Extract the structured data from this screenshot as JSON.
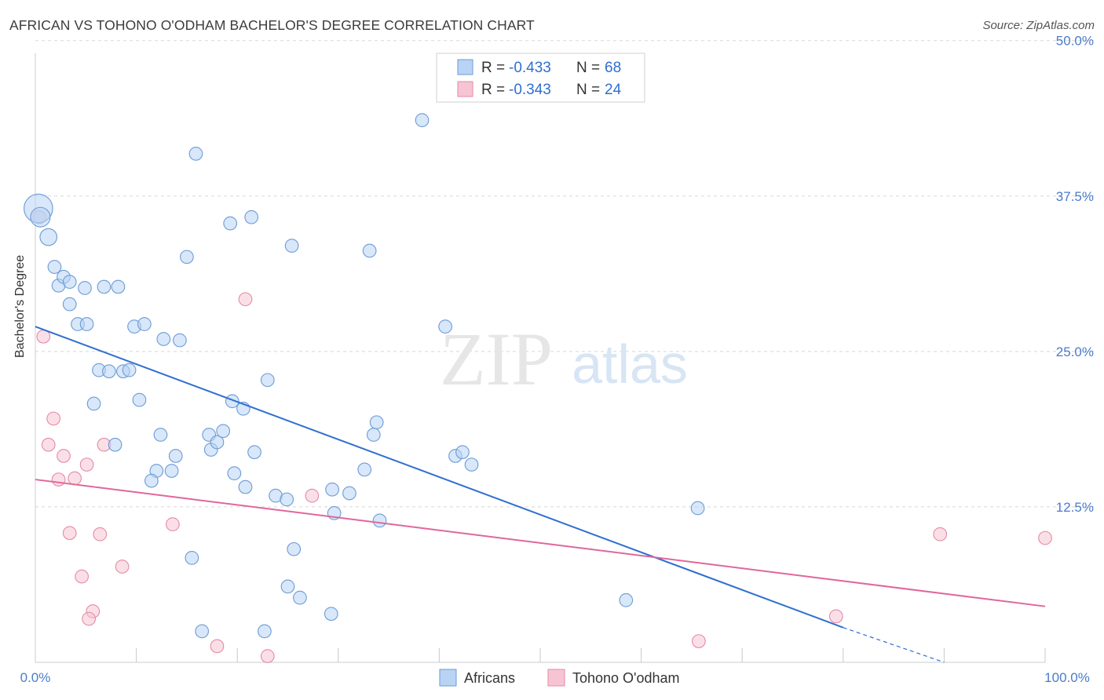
{
  "header": {
    "title": "AFRICAN VS TOHONO O'ODHAM BACHELOR'S DEGREE CORRELATION CHART",
    "source": "Source: ZipAtlas.com"
  },
  "watermark": {
    "zip": "ZIP",
    "atlas": "atlas"
  },
  "colors": {
    "africans_fill": "#b8d3f4",
    "africans_stroke": "#6b9bd6",
    "africans_line": "#2f6fd0",
    "tohono_fill": "#f7c4d3",
    "tohono_stroke": "#e48aa7",
    "tohono_line": "#e0679a",
    "axis_label": "#4a7cc9",
    "grid": "#d8d8d8"
  },
  "legend": {
    "rows": [
      {
        "r_label": "R = ",
        "r_value": "-0.433",
        "n_label": "N = ",
        "n_value": "68"
      },
      {
        "r_label": "R = ",
        "r_value": "-0.343",
        "n_label": "N = ",
        "n_value": "24"
      }
    ]
  },
  "bottom_legend": {
    "africans": "Africans",
    "tohono": "Tohono O'odham"
  },
  "chart_data": {
    "type": "scatter",
    "title": "AFRICAN VS TOHONO O'ODHAM BACHELOR'S DEGREE CORRELATION CHART",
    "xlabel": "",
    "ylabel": "Bachelor's Degree",
    "xlim": [
      0,
      100
    ],
    "ylim": [
      0,
      52
    ],
    "x_tick_labels": [
      "0.0%",
      "100.0%"
    ],
    "y_ticks": [
      12.5,
      25.0,
      37.5,
      50.0
    ],
    "y_tick_labels": [
      "12.5%",
      "25.0%",
      "37.5%",
      "50.0%"
    ],
    "grid": true,
    "series": [
      {
        "name": "Africans",
        "r": -0.433,
        "n": 68,
        "trend": {
          "x1": 0,
          "y1": 27.0,
          "x2": 80,
          "y2": 2.8,
          "dash_to_x": 90,
          "dash_to_y": 0
        },
        "points": [
          [
            0.3,
            36.5,
            2.2
          ],
          [
            0.5,
            35.8,
            1.5
          ],
          [
            1.3,
            34.2,
            1.3
          ],
          [
            1.9,
            31.8,
            1
          ],
          [
            2.3,
            30.3,
            1
          ],
          [
            2.8,
            31.0,
            1
          ],
          [
            3.4,
            30.6,
            1
          ],
          [
            3.4,
            28.8,
            1
          ],
          [
            4.2,
            27.2,
            1
          ],
          [
            5.1,
            27.2,
            1
          ],
          [
            4.9,
            30.1,
            1
          ],
          [
            6.8,
            30.2,
            1
          ],
          [
            8.2,
            30.2,
            1
          ],
          [
            6.3,
            23.5,
            1
          ],
          [
            7.3,
            23.4,
            1
          ],
          [
            8.7,
            23.4,
            1
          ],
          [
            9.3,
            23.5,
            1
          ],
          [
            5.8,
            20.8,
            1
          ],
          [
            7.9,
            17.5,
            1
          ],
          [
            9.8,
            27.0,
            1
          ],
          [
            10.8,
            27.2,
            1
          ],
          [
            10.3,
            21.1,
            1
          ],
          [
            12.7,
            26.0,
            1
          ],
          [
            14.3,
            25.9,
            1
          ],
          [
            15.0,
            32.6,
            1
          ],
          [
            15.9,
            40.9,
            1
          ],
          [
            19.3,
            35.3,
            1
          ],
          [
            21.4,
            35.8,
            1
          ],
          [
            25.4,
            33.5,
            1
          ],
          [
            33.1,
            33.1,
            1
          ],
          [
            38.3,
            43.6,
            1
          ],
          [
            33.8,
            19.3,
            1
          ],
          [
            33.5,
            18.3,
            1
          ],
          [
            23.0,
            22.7,
            1
          ],
          [
            19.5,
            21.0,
            1
          ],
          [
            20.6,
            20.4,
            1
          ],
          [
            17.2,
            18.3,
            1
          ],
          [
            17.4,
            17.1,
            1
          ],
          [
            18.0,
            17.7,
            1
          ],
          [
            18.6,
            18.6,
            1
          ],
          [
            12.4,
            18.3,
            1
          ],
          [
            13.9,
            16.6,
            1
          ],
          [
            12.0,
            15.4,
            1
          ],
          [
            11.5,
            14.6,
            1
          ],
          [
            13.5,
            15.4,
            1
          ],
          [
            19.7,
            15.2,
            1
          ],
          [
            20.8,
            14.1,
            1
          ],
          [
            21.7,
            16.9,
            1
          ],
          [
            23.8,
            13.4,
            1
          ],
          [
            24.9,
            13.1,
            1
          ],
          [
            29.4,
            13.9,
            1
          ],
          [
            31.1,
            13.6,
            1
          ],
          [
            29.6,
            12.0,
            1
          ],
          [
            32.6,
            15.5,
            1
          ],
          [
            34.1,
            11.4,
            1
          ],
          [
            40.6,
            27.0,
            1
          ],
          [
            41.6,
            16.6,
            1
          ],
          [
            42.3,
            16.9,
            1
          ],
          [
            43.2,
            15.9,
            1
          ],
          [
            65.6,
            12.4,
            1
          ],
          [
            25.6,
            9.1,
            1
          ],
          [
            15.5,
            8.4,
            1
          ],
          [
            25.0,
            6.1,
            1
          ],
          [
            26.2,
            5.2,
            1
          ],
          [
            29.3,
            3.9,
            1
          ],
          [
            16.5,
            2.5,
            1
          ],
          [
            22.7,
            2.5,
            1
          ],
          [
            58.5,
            5.0,
            1
          ]
        ]
      },
      {
        "name": "Tohono O'odham",
        "r": -0.343,
        "n": 24,
        "trend": {
          "x1": 0,
          "y1": 14.7,
          "x2": 100,
          "y2": 4.5
        },
        "points": [
          [
            0.4,
            35.8,
            1
          ],
          [
            0.8,
            26.2,
            1
          ],
          [
            1.8,
            19.6,
            1
          ],
          [
            1.3,
            17.5,
            1
          ],
          [
            2.8,
            16.6,
            1
          ],
          [
            2.3,
            14.7,
            1
          ],
          [
            3.9,
            14.8,
            1
          ],
          [
            5.1,
            15.9,
            1
          ],
          [
            6.8,
            17.5,
            1
          ],
          [
            3.4,
            10.4,
            1
          ],
          [
            6.4,
            10.3,
            1
          ],
          [
            13.6,
            11.1,
            1
          ],
          [
            20.8,
            29.2,
            1
          ],
          [
            27.4,
            13.4,
            1
          ],
          [
            8.6,
            7.7,
            1
          ],
          [
            4.6,
            6.9,
            1
          ],
          [
            5.7,
            4.1,
            1
          ],
          [
            5.3,
            3.5,
            1
          ],
          [
            18.0,
            1.3,
            1
          ],
          [
            23.0,
            0.5,
            1
          ],
          [
            79.3,
            3.7,
            1
          ],
          [
            89.6,
            10.3,
            1
          ],
          [
            100.0,
            10.0,
            1
          ],
          [
            65.7,
            1.7,
            1
          ]
        ]
      }
    ]
  }
}
